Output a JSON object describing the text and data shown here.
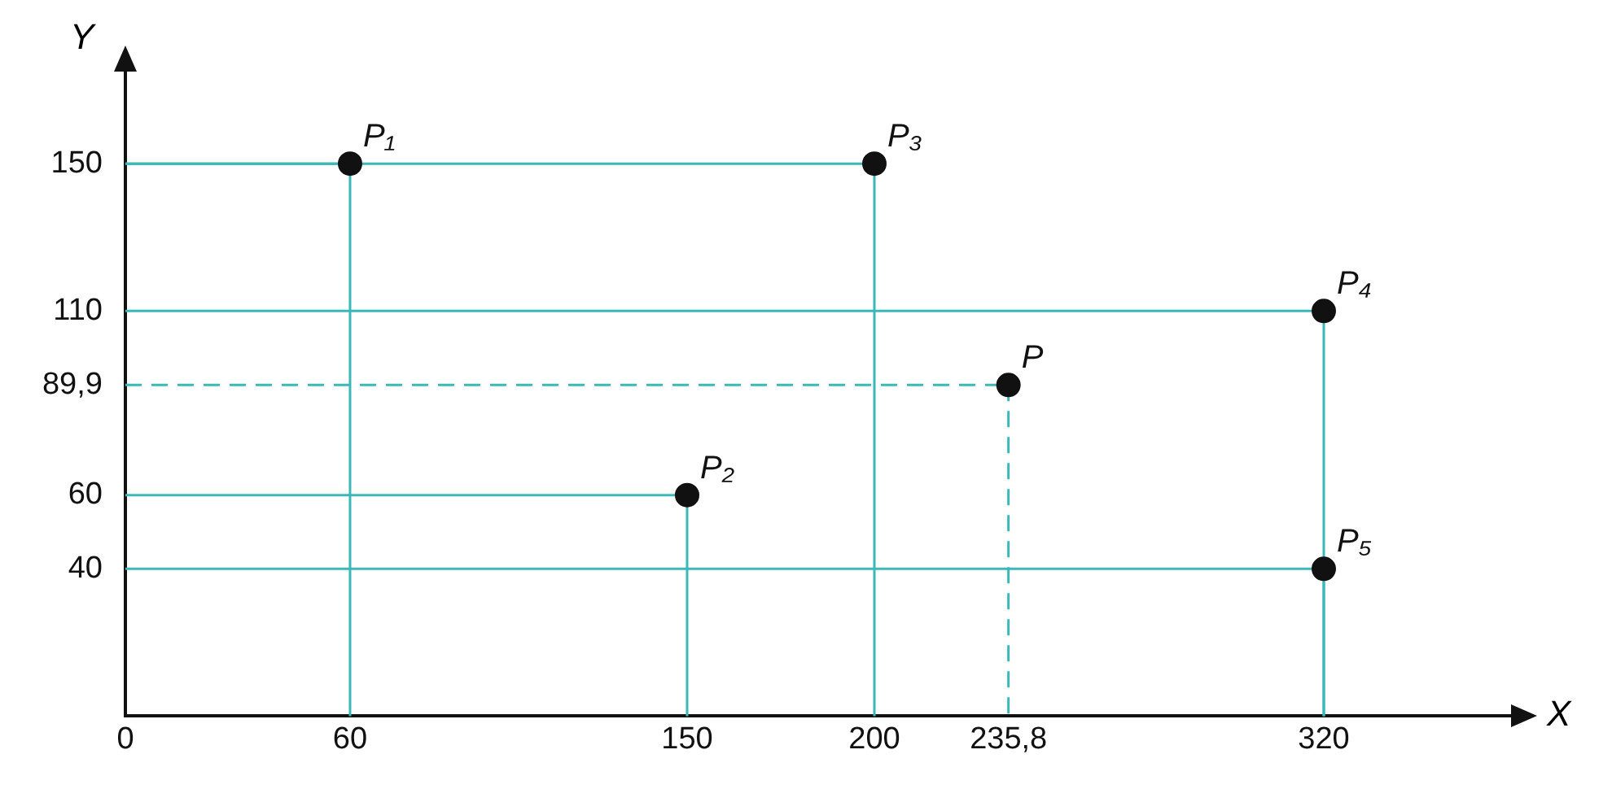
{
  "chart_data": {
    "type": "scatter",
    "xlabel": "X",
    "ylabel": "Y",
    "marker": "circle",
    "grid": true,
    "legend": false,
    "xlim": [
      0,
      370
    ],
    "ylim": [
      0,
      175
    ],
    "xticks": [
      0,
      60,
      150,
      200,
      {
        "value": 235.8,
        "label": "235,8"
      },
      320
    ],
    "yticks": [
      40,
      60,
      {
        "value": 89.9,
        "label": "89,9"
      },
      110,
      150
    ],
    "series": [
      {
        "color": "#111111",
        "x": [
          60,
          150,
          200,
          320,
          320
        ],
        "values": [
          150,
          60,
          150,
          110,
          40
        ],
        "line_style": "solid"
      },
      {
        "color": "#111111",
        "x": [
          235.8
        ],
        "values": [
          89.9
        ],
        "line_style": "dashed"
      }
    ],
    "annotations": [
      {
        "text": "P₁",
        "x": 60,
        "y": 150
      },
      {
        "text": "P₂",
        "x": 150,
        "y": 60
      },
      {
        "text": "P₃",
        "x": 200,
        "y": 150
      },
      {
        "text": "P₄",
        "x": 320,
        "y": 110
      },
      {
        "text": "P₅",
        "x": 320,
        "y": 40
      },
      {
        "text": "P",
        "x": 235.8,
        "y": 89.9
      }
    ]
  }
}
